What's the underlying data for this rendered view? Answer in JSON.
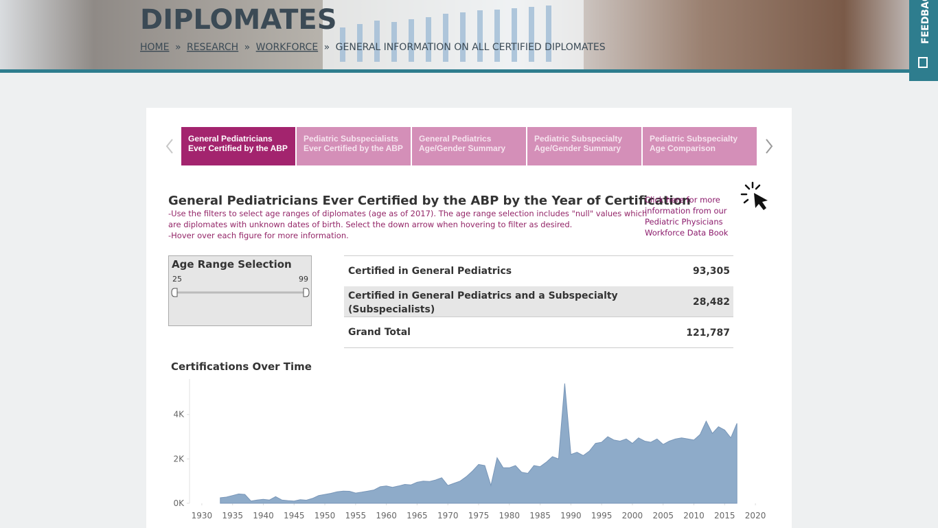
{
  "header": {
    "title": "DIPLOMATES",
    "breadcrumb": [
      "HOME",
      "RESEARCH",
      "WORKFORCE"
    ],
    "separator": "»",
    "current": "GENERAL INFORMATION ON ALL CERTIFIED DIPLOMATES"
  },
  "feedback": "FEEDBACK",
  "tabs": [
    {
      "lines": [
        "General Pediatricians",
        "Ever Certified by the ABP"
      ]
    },
    {
      "lines": [
        "Pediatric Subspecialists",
        "Ever Certified by the ABP"
      ]
    },
    {
      "lines": [
        "General Pediatrics",
        "Age/Gender Summary"
      ]
    },
    {
      "lines": [
        "Pediatric Subspecialty",
        "Age/Gender Summary"
      ]
    },
    {
      "lines": [
        "Pediatric Subspecialty",
        "Age Comparison"
      ]
    }
  ],
  "section": {
    "title": "General Pediatricians Ever Certified by the ABP by the Year of Certification",
    "instructions": [
      "-Use the filters to select age ranges of diplomates (age as of 2017). The age range selection includes \"null\" values which",
      "are diplomates with unknown dates of birth.  Select the down arrow when hovering to filter as desired.",
      "-Hover over each figure for more information."
    ],
    "link": [
      "Click here for more",
      "information from our",
      "Pediatric Physicians",
      "Workforce Data Book"
    ]
  },
  "filter": {
    "title": "Age Range Selection",
    "min": 25,
    "max": 99
  },
  "table": {
    "rows": [
      {
        "label": [
          "Certified in General Pediatrics"
        ],
        "value": "93,305"
      },
      {
        "label": [
          "Certified in General Pediatrics and a Subspecialty",
          "(Subspecialists)"
        ],
        "value": "28,482"
      },
      {
        "label": [
          "Grand Total"
        ],
        "value": "121,787"
      }
    ]
  },
  "chart_data": {
    "type": "area",
    "title": "Certifications Over Time",
    "color": "#8eabc9",
    "x": [
      1933,
      1934,
      1935,
      1936,
      1937,
      1938,
      1939,
      1940,
      1941,
      1942,
      1943,
      1944,
      1945,
      1946,
      1947,
      1948,
      1949,
      1950,
      1951,
      1952,
      1953,
      1954,
      1955,
      1956,
      1957,
      1958,
      1959,
      1960,
      1961,
      1962,
      1963,
      1964,
      1965,
      1966,
      1967,
      1968,
      1969,
      1970,
      1971,
      1972,
      1973,
      1974,
      1975,
      1976,
      1977,
      1978,
      1979,
      1980,
      1981,
      1982,
      1983,
      1984,
      1985,
      1986,
      1987,
      1988,
      1989,
      1990,
      1991,
      1992,
      1993,
      1994,
      1995,
      1996,
      1997,
      1998,
      1999,
      2000,
      2001,
      2002,
      2003,
      2004,
      2005,
      2006,
      2007,
      2008,
      2009,
      2010,
      2011,
      2012,
      2013,
      2014,
      2015,
      2016,
      2017
    ],
    "values": [
      250,
      280,
      350,
      420,
      400,
      100,
      150,
      180,
      150,
      300,
      150,
      120,
      100,
      160,
      140,
      220,
      350,
      400,
      450,
      520,
      550,
      540,
      460,
      500,
      550,
      600,
      750,
      780,
      720,
      780,
      850,
      830,
      950,
      1000,
      980,
      1050,
      1150,
      800,
      900,
      1000,
      1200,
      1450,
      1750,
      1700,
      800,
      2050,
      1600,
      1600,
      1700,
      1400,
      1350,
      1700,
      1650,
      1850,
      2100,
      2000,
      5400,
      2200,
      2300,
      2150,
      2350,
      2700,
      2750,
      3000,
      2850,
      2800,
      2900,
      2700,
      2950,
      2800,
      2750,
      2900,
      2650,
      2800,
      2900,
      2950,
      2900,
      2850,
      3100,
      3700,
      3150,
      3450,
      3300,
      2950,
      3600
    ],
    "xlim": [
      1928,
      2022
    ],
    "xticks": [
      1930,
      1935,
      1940,
      1945,
      1950,
      1955,
      1960,
      1965,
      1970,
      1975,
      1980,
      1985,
      1990,
      1995,
      2000,
      2005,
      2010,
      2015,
      2020
    ],
    "ylim": [
      0,
      5600
    ],
    "yticks": [
      {
        "value": 0,
        "label": "0K"
      },
      {
        "value": 2000,
        "label": "2K"
      },
      {
        "value": 4000,
        "label": "4K"
      }
    ],
    "grid": false
  }
}
